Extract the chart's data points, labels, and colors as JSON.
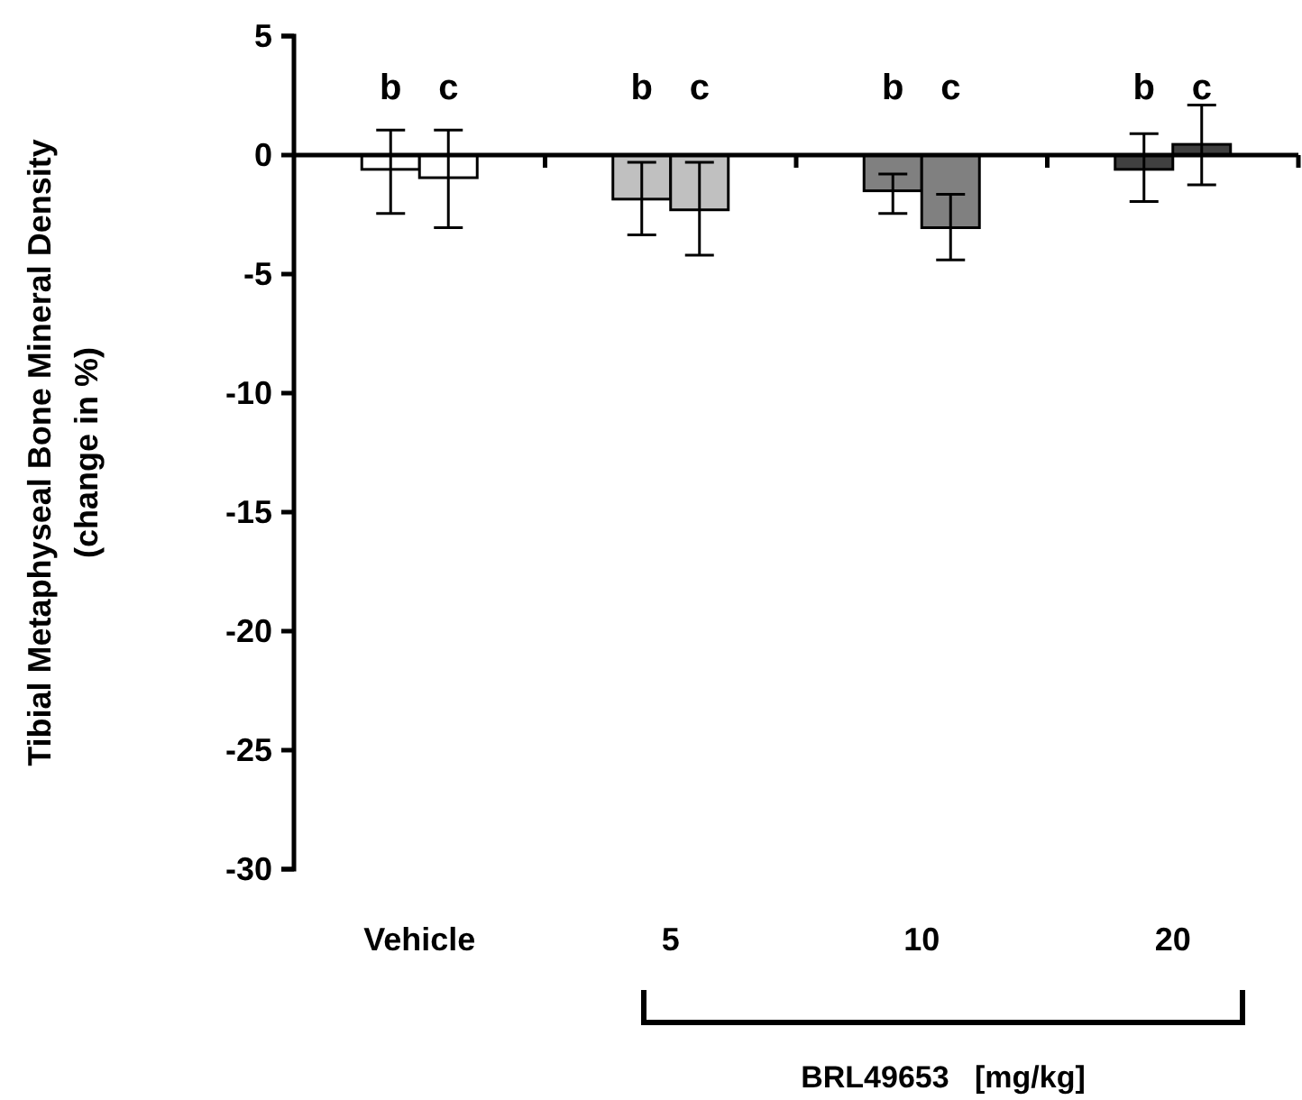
{
  "chart_data": {
    "type": "bar",
    "ylabel": "Tibial Metaphyseal Bone Mineral Density\n(change in %)",
    "xlabel": "BRL49653   [mg/kg]",
    "categories": [
      "Vehicle",
      "5",
      "10",
      "20"
    ],
    "series": [
      {
        "colors": [
          "#ffffff",
          "#c0c0c0",
          "#808080",
          "#404040"
        ],
        "values": [
          -0.6,
          -1.85,
          -1.5,
          -0.6
        ],
        "errors": [
          [
            -2.45,
            1.05
          ],
          [
            -3.35,
            -0.3
          ],
          [
            -2.45,
            -0.8
          ],
          [
            -1.95,
            0.9
          ]
        ]
      },
      {
        "colors": [
          "#ffffff",
          "#c0c0c0",
          "#808080",
          "#404040"
        ],
        "values": [
          -0.95,
          -2.3,
          -3.05,
          0.45
        ],
        "errors": [
          [
            -3.05,
            1.05
          ],
          [
            -4.2,
            -0.3
          ],
          [
            -4.4,
            -1.65
          ],
          [
            -1.25,
            2.1
          ]
        ]
      }
    ],
    "ylim": [
      -30,
      5
    ],
    "yticks": [
      -30,
      -25,
      -20,
      -15,
      -10,
      -5,
      0,
      5
    ],
    "annotations": [
      "b",
      "c",
      "b",
      "c",
      "b",
      "c",
      "b",
      "c"
    ]
  }
}
